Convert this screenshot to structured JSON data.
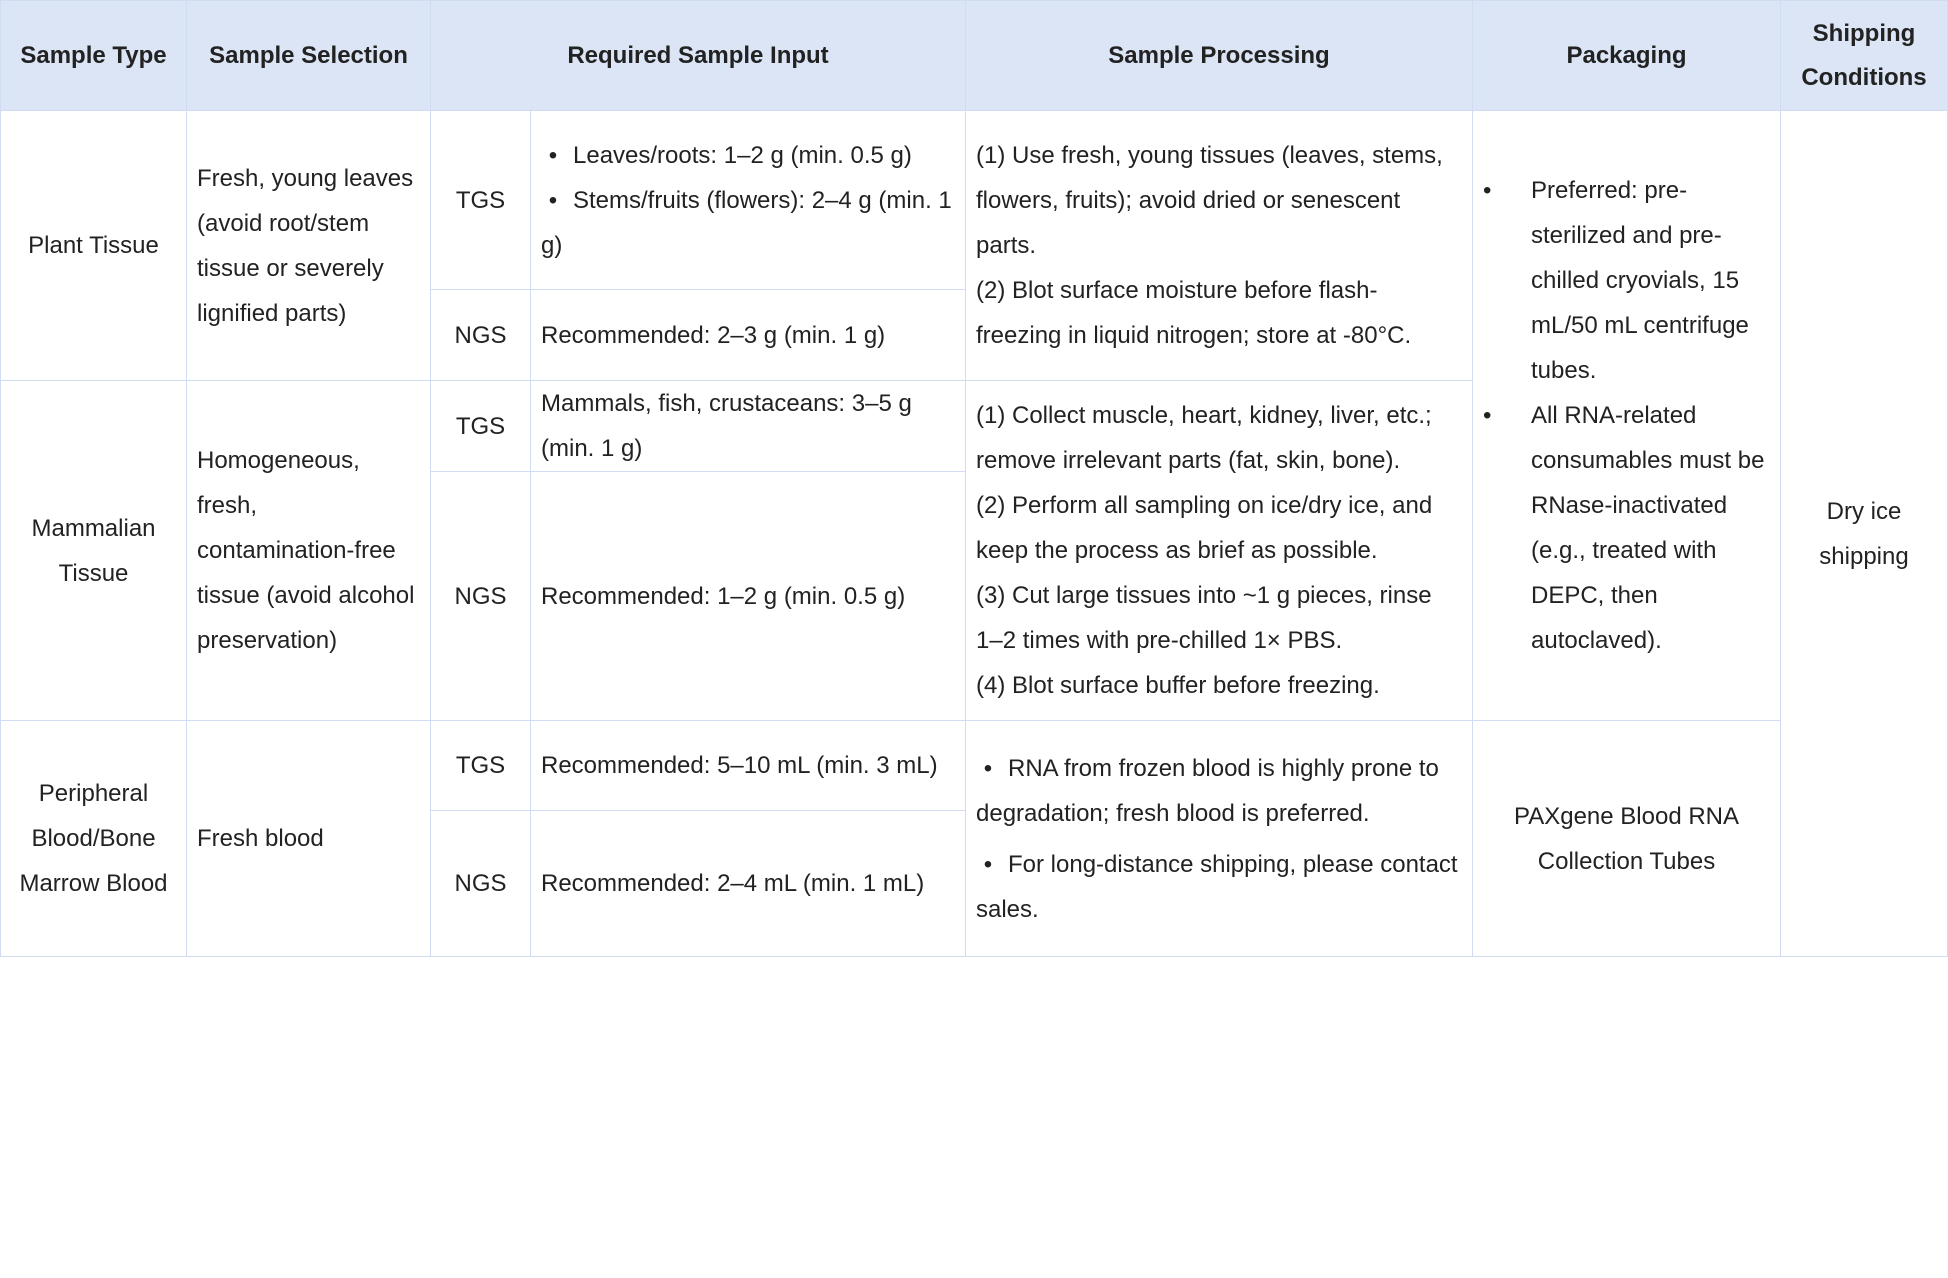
{
  "table": {
    "header": [
      "Sample Type",
      "Sample Selection",
      "Required Sample Input",
      "Sample Processing",
      "Packaging",
      "Shipping Conditions"
    ],
    "shipping": "Dry ice shipping",
    "packaging_shared": {
      "bullets": [
        "Preferred: pre-sterilized and pre-chilled cryovials, 15 mL/50 mL centrifuge tubes.",
        "All RNA-related consumables must be RNase-inactivated (e.g., treated with DEPC, then autoclaved)."
      ]
    },
    "groups": [
      {
        "sample_type": "Plant Tissue",
        "sample_selection": "Fresh, young leaves (avoid root/stem tissue or severely lignified parts)",
        "inputs": [
          {
            "platform": "TGS",
            "bullets": [
              "Leaves/roots: 1–2 g (min. 0.5 g)",
              "Stems/fruits (flowers): 2–4 g (min. 1 g)"
            ]
          },
          {
            "platform": "NGS",
            "text": "Recommended: 2–3 g (min. 1 g)"
          }
        ],
        "processing": {
          "steps": [
            "(1) Use fresh, young tissues (leaves, stems, flowers, fruits); avoid dried or senescent parts.",
            "(2) Blot surface moisture before flash-freezing in liquid nitrogen; store at -80°C."
          ]
        }
      },
      {
        "sample_type": "Mammalian Tissue",
        "sample_selection": "Homogeneous, fresh, contamination-free tissue (avoid alcohol preservation)",
        "inputs": [
          {
            "platform": "TGS",
            "text": "Mammals, fish, crustaceans: 3–5 g (min. 1 g)"
          },
          {
            "platform": "NGS",
            "text": "Recommended: 1–2 g (min. 0.5 g)"
          }
        ],
        "processing": {
          "steps": [
            "(1) Collect muscle, heart, kidney, liver, etc.; remove irrelevant parts (fat, skin, bone).",
            "(2) Perform all sampling on ice/dry ice, and keep the process as brief as possible.",
            "(3) Cut large tissues into ~1 g pieces, rinse 1–2 times with pre-chilled 1× PBS.",
            "(4) Blot surface buffer before freezing."
          ]
        }
      },
      {
        "sample_type": "Peripheral Blood/Bone Marrow Blood",
        "sample_selection": "Fresh blood",
        "inputs": [
          {
            "platform": "TGS",
            "text": "Recommended: 5–10 mL (min. 3 mL)"
          },
          {
            "platform": "NGS",
            "text": "Recommended: 2–4 mL (min. 1 mL)"
          }
        ],
        "processing": {
          "bullets": [
            "RNA from frozen blood is highly prone to degradation; fresh blood is preferred.",
            "For long-distance shipping, please contact sales."
          ]
        },
        "packaging": "PAXgene Blood RNA Collection Tubes"
      }
    ]
  }
}
